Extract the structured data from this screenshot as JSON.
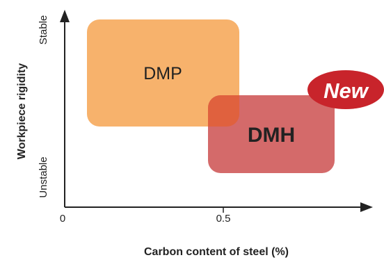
{
  "colors": {
    "dmp_fill": "#f7b26c",
    "dmh_fill": "#d46a6a",
    "overlap_fill": "#e0613e",
    "new_badge": "#c8242b",
    "axis": "#222222"
  },
  "axes": {
    "x_label": "Carbon content of steel (%)",
    "y_label": "Workpiece rigidity",
    "x_ticks": [
      "0",
      "0.5"
    ],
    "y_low": "Unstable",
    "y_high": "Stable"
  },
  "regions": {
    "dmp": {
      "label": "DMP",
      "carbon_range": [
        0.07,
        0.55
      ],
      "rigidity": "upper"
    },
    "dmh": {
      "label": "DMH",
      "carbon_range": [
        0.46,
        0.85
      ],
      "rigidity": "lower"
    }
  },
  "badge": {
    "text": "New"
  }
}
